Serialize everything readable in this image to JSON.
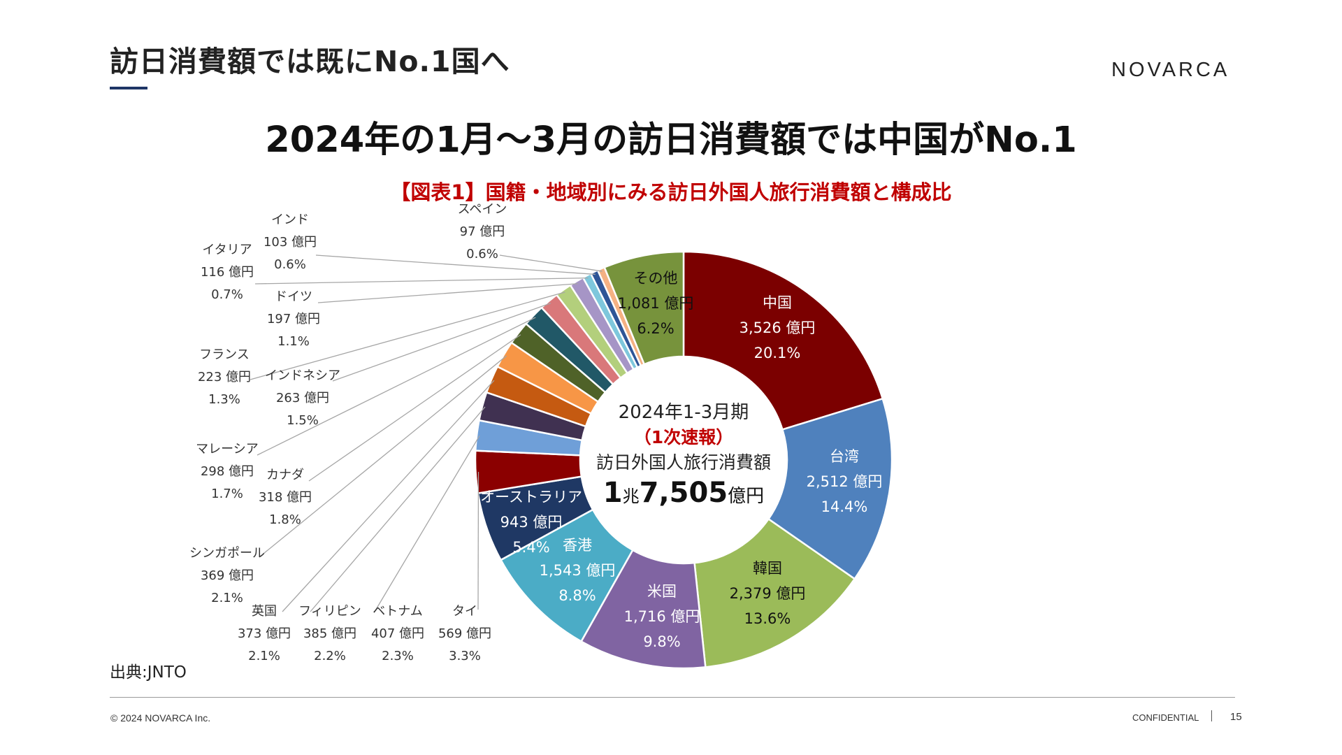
{
  "slide": {
    "title": "訪日消費額では既にNo.1国へ",
    "brand": "NOVARCA",
    "headline": "2024年の1月～3月の訪日消費額では中国がNo.1",
    "source": "出典:JNTO",
    "copyright": "© 2024 NOVARCA Inc.",
    "confidential": "CONFIDENTIAL",
    "page_number": "15"
  },
  "chart_data": {
    "type": "pie",
    "variant": "donut",
    "title": "【図表1】国籍・地域別にみる訪日外国人旅行消費額と構成比",
    "center": {
      "period": "2024年1-3月期",
      "note": "（1次速報）",
      "label": "訪日外国人旅行消費額",
      "total_prefix": "1",
      "total_unit_1": "兆",
      "total_value": "7,505",
      "total_unit_2": "億円"
    },
    "unit": "億円",
    "slices": [
      {
        "name": "中国",
        "value": 3526,
        "amount": "3,526 億円",
        "percent": "20.1%",
        "color": "#7b0000"
      },
      {
        "name": "台湾",
        "value": 2512,
        "amount": "2,512 億円",
        "percent": "14.4%",
        "color": "#4f81bd"
      },
      {
        "name": "韓国",
        "value": 2379,
        "amount": "2,379 億円",
        "percent": "13.6%",
        "color": "#9bbb59"
      },
      {
        "name": "米国",
        "value": 1716,
        "amount": "1,716 億円",
        "percent": "9.8%",
        "color": "#8064a2"
      },
      {
        "name": "香港",
        "value": 1543,
        "amount": "1,543 億円",
        "percent": "8.8%",
        "color": "#4bacc6"
      },
      {
        "name": "オーストラリア",
        "value": 943,
        "amount": "943 億円",
        "percent": "5.4%",
        "color": "#1f3864"
      },
      {
        "name": "タイ",
        "value": 569,
        "amount": "569 億円",
        "percent": "3.3%",
        "color": "#8b0000"
      },
      {
        "name": "ベトナム",
        "value": 407,
        "amount": "407 億円",
        "percent": "2.3%",
        "color": "#6f9fd8"
      },
      {
        "name": "フィリピン",
        "value": 385,
        "amount": "385 億円",
        "percent": "2.2%",
        "color": "#403151"
      },
      {
        "name": "英国",
        "value": 373,
        "amount": "373 億円",
        "percent": "2.1%",
        "color": "#c55a11"
      },
      {
        "name": "シンガポール",
        "value": 369,
        "amount": "369 億円",
        "percent": "2.1%",
        "color": "#f79646"
      },
      {
        "name": "カナダ",
        "value": 318,
        "amount": "318 億円",
        "percent": "1.8%",
        "color": "#4f6228"
      },
      {
        "name": "マレーシア",
        "value": 298,
        "amount": "298 億円",
        "percent": "1.7%",
        "color": "#215867"
      },
      {
        "name": "インドネシア",
        "value": 263,
        "amount": "263 億円",
        "percent": "1.5%",
        "color": "#d9787a"
      },
      {
        "name": "フランス",
        "value": 223,
        "amount": "223 億円",
        "percent": "1.3%",
        "color": "#b3cf7c"
      },
      {
        "name": "ドイツ",
        "value": 197,
        "amount": "197 億円",
        "percent": "1.1%",
        "color": "#a695c6"
      },
      {
        "name": "イタリア",
        "value": 116,
        "amount": "116 億円",
        "percent": "0.7%",
        "color": "#7ec7dc"
      },
      {
        "name": "インド",
        "value": 103,
        "amount": "103 億円",
        "percent": "0.6%",
        "color": "#2e5597"
      },
      {
        "name": "スペイン",
        "value": 97,
        "amount": "97 億円",
        "percent": "0.6%",
        "color": "#f4b183"
      },
      {
        "name": "その他",
        "value": 1081,
        "amount": "1,081 億円",
        "percent": "6.2%",
        "color": "#77933c"
      }
    ],
    "thin_gap_color": "#a03030"
  }
}
